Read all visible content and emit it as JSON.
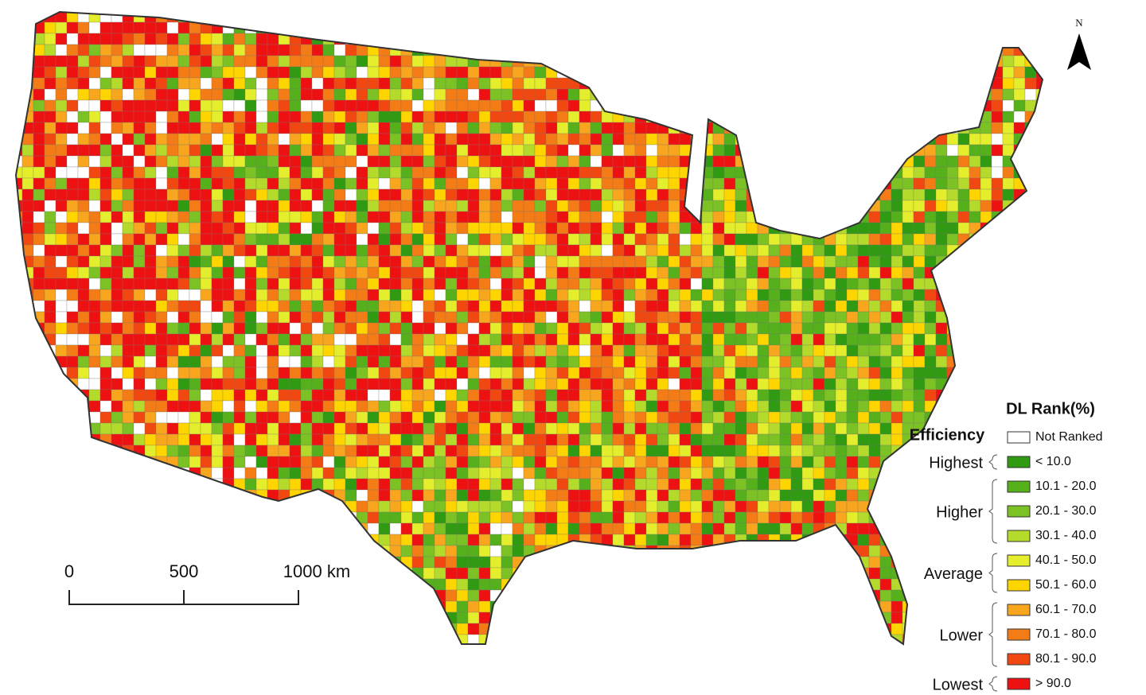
{
  "map": {
    "north": "N",
    "scale_bar": {
      "labels": [
        "0",
        "500",
        "1000 km"
      ]
    },
    "legend": {
      "title": "DL Rank(%)",
      "subtitle": "Efficiency",
      "items": [
        {
          "label": "Not Ranked",
          "color": "#ffffff"
        },
        {
          "label": "< 10.0",
          "color": "#2f9a12"
        },
        {
          "label": "10.1 - 20.0",
          "color": "#55b01c"
        },
        {
          "label": "20.1 - 30.0",
          "color": "#7dc224"
        },
        {
          "label": "30.1 - 40.0",
          "color": "#b4da2c"
        },
        {
          "label": "40.1 - 50.0",
          "color": "#e4ee2c"
        },
        {
          "label": "50.1 - 60.0",
          "color": "#ffd500"
        },
        {
          "label": "60.1 - 70.0",
          "color": "#f8a61e"
        },
        {
          "label": "70.1 - 80.0",
          "color": "#f47c16"
        },
        {
          "label": "80.1 - 90.0",
          "color": "#f04810"
        },
        {
          "label": "> 90.0",
          "color": "#ee1111"
        }
      ],
      "groups": [
        "Highest",
        "Higher",
        "Average",
        "Lower",
        "Lowest"
      ]
    }
  }
}
